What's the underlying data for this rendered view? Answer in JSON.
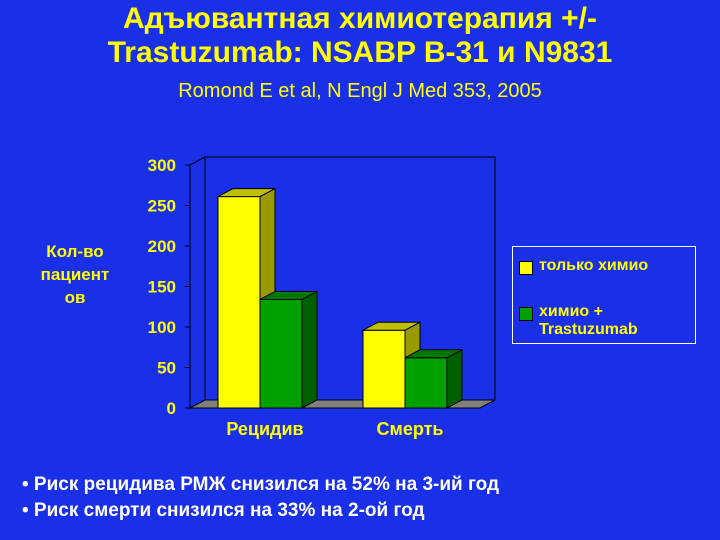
{
  "slide": {
    "title_line1": "Адъювантная химиотерапия +/-",
    "title_line2": "Trastuzumab: NSABP B-31 и N9831",
    "subtitle": "Romond E et al, N Engl J Med 353, 2005",
    "bullets": [
      "• Риск рецидива РМЖ снизился на 52% на 3-ий год",
      "• Риск смерти снизился на 33% на 2-ой год"
    ]
  },
  "chart_data": {
    "type": "bar",
    "title": "",
    "xlabel": "",
    "ylabel_lines": [
      "Кол-во",
      "пациент",
      "ов"
    ],
    "categories": [
      "Рецидив",
      "Смерть"
    ],
    "series": [
      {
        "name": "только химио",
        "values": [
          261,
          96
        ],
        "color": "#ffff00"
      },
      {
        "name": "химио + Trastuzumab",
        "values": [
          134,
          62
        ],
        "color": "#00a000"
      }
    ],
    "legend_lines": [
      [
        "только химио"
      ],
      [
        "химио +",
        "Trastuzumab"
      ]
    ],
    "ylim": [
      0,
      300
    ],
    "yticks": [
      0,
      50,
      100,
      150,
      200,
      250,
      300
    ],
    "legend_position": "right",
    "grid": false,
    "style": "3d"
  }
}
